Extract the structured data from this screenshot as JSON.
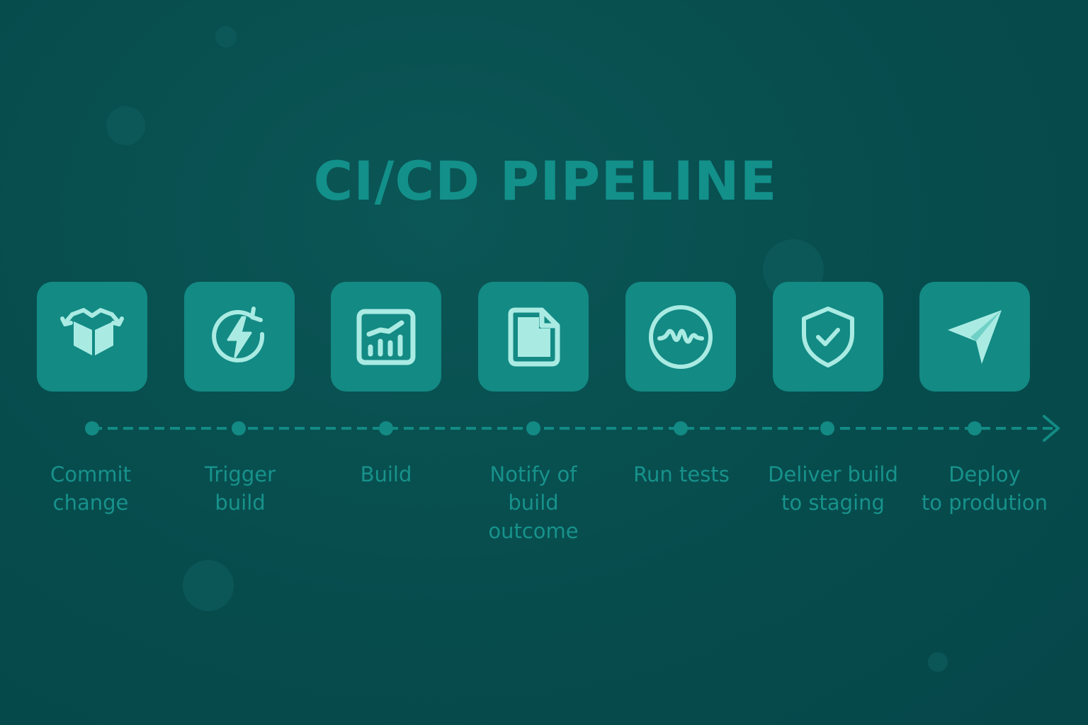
{
  "diagram": {
    "title": "CI/CD PIPELINE",
    "stages": [
      {
        "label": "Commit\nchange",
        "icon": "package-cube-icon"
      },
      {
        "label": "Trigger\nbuild",
        "icon": "lightning-refresh-icon"
      },
      {
        "label": "Build",
        "icon": "bar-chart-board-icon"
      },
      {
        "label": "Notify of\nbuild\noutcome",
        "icon": "document-icon"
      },
      {
        "label": "Run tests",
        "icon": "waveform-circle-icon"
      },
      {
        "label": "Deliver build\nto staging",
        "icon": "shield-check-icon"
      },
      {
        "label": "Deploy\nto prodution",
        "icon": "paper-plane-icon"
      }
    ]
  },
  "colors": {
    "background": "#074c4d",
    "tile": "#138a84",
    "icon": "#a9ebe3",
    "text": "#17928b",
    "timeline": "#138a84"
  }
}
